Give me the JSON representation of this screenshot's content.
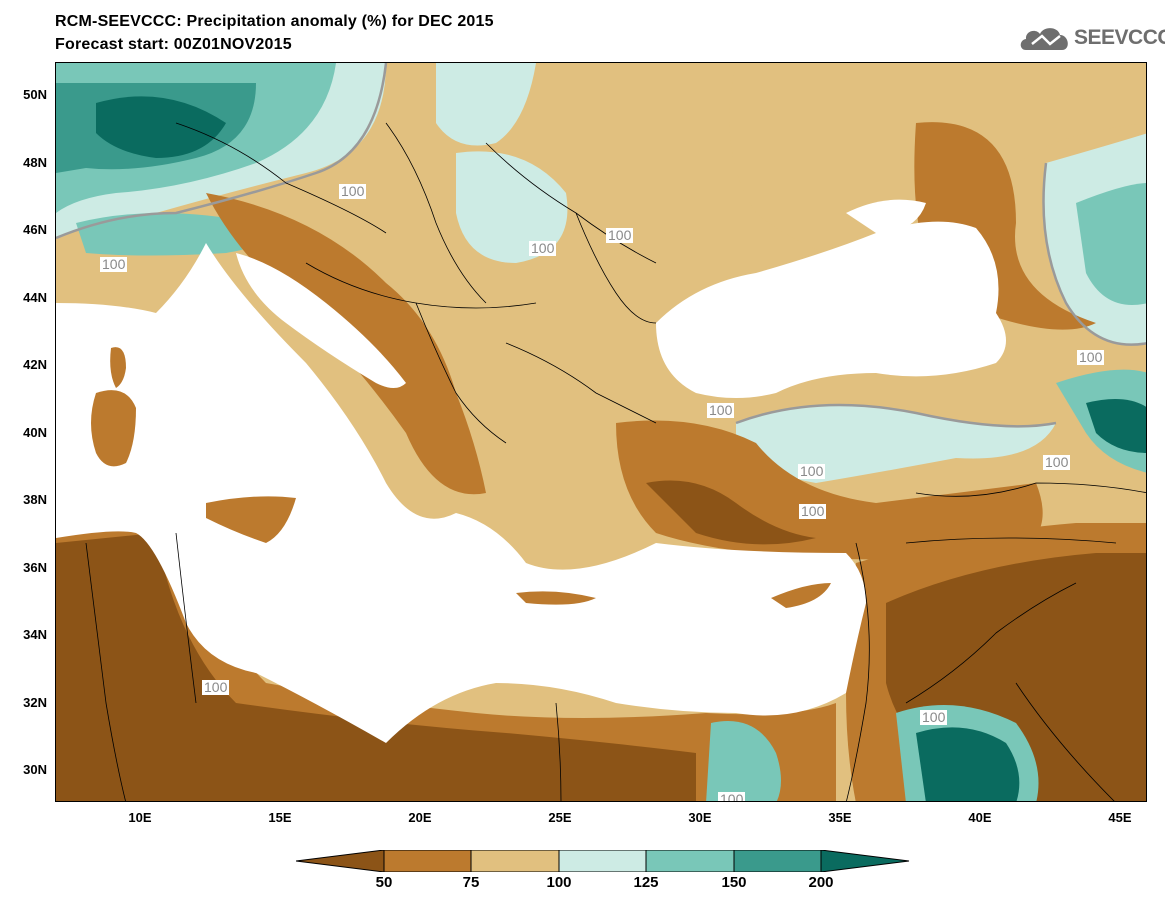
{
  "title_line1": "RCM-SEEVCCC: Precipitation anomaly (%) for DEC 2015",
  "title_line2": "Forecast start: 00Z01NOV2015",
  "logo_text": "SEEVCCC",
  "lat_labels": [
    "50N",
    "48N",
    "46N",
    "44N",
    "42N",
    "40N",
    "38N",
    "36N",
    "34N",
    "32N",
    "30N"
  ],
  "lon_labels": [
    "10E",
    "15E",
    "20E",
    "25E",
    "30E",
    "35E",
    "40E",
    "45E"
  ],
  "contour_label": "100",
  "colorbar": {
    "labels": [
      "50",
      "75",
      "100",
      "125",
      "150",
      "200"
    ],
    "colors": [
      "#8c5417",
      "#bc7a2e",
      "#e1c07f",
      "#cdebe4",
      "#79c7b8",
      "#3a9a8c",
      "#0a6b5f"
    ]
  }
}
